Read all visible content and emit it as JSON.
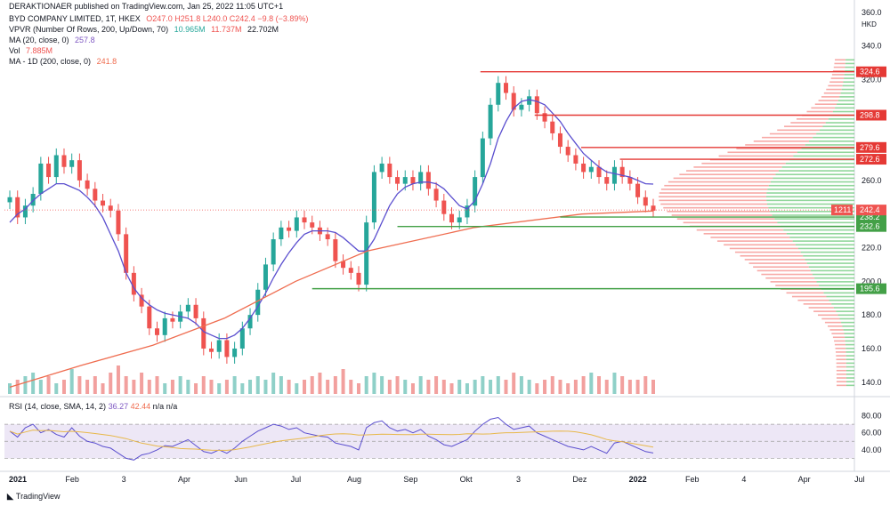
{
  "header": {
    "published": "DERAKTIONAER published on TradingView.com, Jan 25, 2022 11:05 UTC+1",
    "symbol": "BYD COMPANY LIMITED, 1T, HKEX",
    "ohlc": "O247.0  H251.8  L240.0  C242.4  −9.8 (−3.89%)",
    "vpvr_label": "VPVR (Number Of Rows, 200, Up/Down, 70)",
    "vpvr_values": [
      "10.965M",
      "11.737M",
      "22.702M"
    ],
    "ma20_label": "MA (20, close, 0)",
    "ma20_value": "257.8",
    "vol_label": "Vol",
    "vol_value": "7.885M",
    "ma200_label": "MA - 1D (200, close, 0)",
    "ma200_value": "241.8"
  },
  "rsi_header": {
    "label": "RSI (14, close, SMA, 14, 2)",
    "values": [
      "36.27",
      "42.44",
      "n/a",
      "n/a"
    ]
  },
  "footer": {
    "brand": "TradingView"
  },
  "currency": "HKD",
  "colors": {
    "up": "#26a69a",
    "down": "#ef5350",
    "ma20": "#5b4fcf",
    "ma200": "#ef6c4f",
    "resistance": "#e53935",
    "support": "#43a047",
    "rsi": "#5b4fcf",
    "rsi_ma": "#e8b84a",
    "rsi_bg": "#ede7f6"
  },
  "chart_data": {
    "type": "candlestick",
    "price_axis": {
      "ticks": [
        140,
        160,
        180,
        200,
        220,
        240,
        260,
        280,
        300,
        320,
        340,
        360
      ],
      "ylim": [
        133,
        362
      ]
    },
    "time_axis": {
      "labels": [
        "2021",
        "Feb",
        "3",
        "Apr",
        "Jun",
        "Jul",
        "Aug",
        "Sep",
        "Okt",
        "3",
        "Dez",
        "2022",
        "Feb",
        "4",
        "Apr",
        "Jul"
      ]
    },
    "resistance_levels": [
      324.6,
      298.8,
      279.6,
      272.6
    ],
    "support_levels": [
      238.2,
      232.6,
      195.6
    ],
    "current_price": {
      "value": 242.4,
      "label": "1211"
    },
    "close_series": [
      250,
      238,
      245,
      252,
      270,
      262,
      275,
      268,
      272,
      260,
      255,
      248,
      245,
      242,
      228,
      205,
      192,
      185,
      172,
      168,
      178,
      176,
      182,
      186,
      178,
      160,
      158,
      165,
      155,
      160,
      172,
      180,
      195,
      210,
      225,
      232,
      230,
      238,
      235,
      232,
      228,
      225,
      212,
      208,
      205,
      198,
      235,
      265,
      270,
      262,
      258,
      262,
      258,
      265,
      255,
      248,
      240,
      235,
      238,
      245,
      262,
      285,
      305,
      318,
      312,
      302,
      305,
      310,
      300,
      295,
      288,
      280,
      275,
      270,
      265,
      268,
      262,
      258,
      268,
      262,
      258,
      250,
      245,
      242
    ],
    "volume_series": [
      3,
      4,
      5,
      6,
      4,
      5,
      3,
      4,
      7,
      5,
      4,
      5,
      3,
      6,
      8,
      5,
      4,
      6,
      4,
      5,
      3,
      4,
      5,
      4,
      3,
      5,
      4,
      3,
      4,
      5,
      3,
      4,
      5,
      4,
      6,
      5,
      4,
      3,
      4,
      5,
      6,
      4,
      5,
      7,
      4,
      3,
      5,
      6,
      5,
      4,
      5,
      4,
      3,
      5,
      4,
      5,
      4,
      3,
      4,
      3,
      4,
      5,
      4,
      5,
      4,
      6,
      5,
      4,
      3,
      4,
      5,
      4,
      3,
      4,
      5,
      6,
      5,
      4,
      6,
      5,
      4,
      4,
      5,
      4
    ],
    "ma20_series": [
      235,
      240,
      243,
      248,
      252,
      255,
      258,
      258,
      256,
      254,
      250,
      245,
      238,
      228,
      218,
      205,
      196,
      190,
      186,
      183,
      181,
      180,
      179,
      178,
      175,
      170,
      168,
      166,
      166,
      168,
      172,
      178,
      185,
      193,
      202,
      210,
      217,
      223,
      228,
      230,
      230,
      230,
      229,
      226,
      222,
      218,
      218,
      225,
      235,
      245,
      252,
      256,
      258,
      259,
      259,
      258,
      255,
      250,
      245,
      243,
      248,
      258,
      270,
      285,
      295,
      303,
      307,
      308,
      307,
      305,
      300,
      295,
      288,
      282,
      276,
      272,
      268,
      265,
      264,
      263,
      262,
      260,
      258,
      257.8
    ],
    "ma200_points": [
      [
        0,
        137
      ],
      [
        20,
        150
      ],
      [
        40,
        162
      ],
      [
        60,
        178
      ],
      [
        80,
        200
      ],
      [
        100,
        218
      ],
      [
        130,
        232
      ],
      [
        160,
        240
      ],
      [
        180,
        241.8
      ]
    ],
    "volume_profile_note": "VPVR",
    "rsi": {
      "ylim": [
        20,
        90
      ],
      "ticks": [
        40,
        60,
        80
      ],
      "bands": [
        30,
        70
      ],
      "current": 36.27,
      "ma_current": 42.44,
      "series": [
        62,
        55,
        66,
        70,
        60,
        64,
        58,
        55,
        66,
        56,
        50,
        48,
        44,
        42,
        36,
        30,
        28,
        34,
        36,
        40,
        45,
        44,
        48,
        52,
        45,
        38,
        36,
        40,
        36,
        42,
        50,
        56,
        62,
        66,
        70,
        68,
        64,
        66,
        60,
        58,
        56,
        55,
        48,
        46,
        44,
        40,
        66,
        72,
        74,
        66,
        62,
        64,
        60,
        64,
        56,
        52,
        46,
        44,
        48,
        52,
        62,
        70,
        76,
        78,
        70,
        64,
        66,
        68,
        60,
        56,
        52,
        48,
        44,
        42,
        40,
        44,
        40,
        36,
        48,
        50,
        46,
        42,
        38,
        36.27
      ]
    }
  }
}
